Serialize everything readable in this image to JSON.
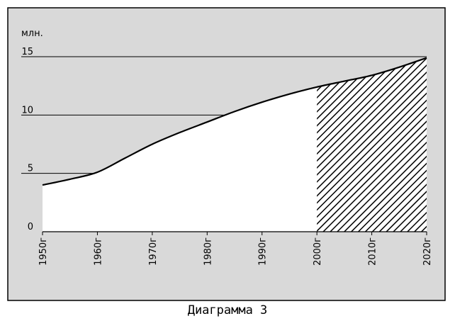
{
  "chart_data": {
    "type": "area",
    "caption": "Диаграмма 3",
    "ylabel": "млн.",
    "xlabel": "",
    "ylim": [
      0,
      15
    ],
    "yticks": [
      "0",
      "5",
      "10",
      "15"
    ],
    "x": [
      1950,
      1955,
      1960,
      1965,
      1970,
      1975,
      1980,
      1985,
      1990,
      1995,
      2000,
      2005,
      2010,
      2015,
      2020
    ],
    "xtick_labels": [
      "1950г",
      "1960г",
      "1970г",
      "1980г",
      "1990г",
      "2000г",
      "2010г",
      "2020г"
    ],
    "values": [
      4.0,
      4.5,
      5.1,
      6.3,
      7.5,
      8.5,
      9.4,
      10.3,
      11.1,
      11.8,
      12.4,
      12.9,
      13.4,
      14.1,
      14.9
    ],
    "forecast_from": 2000,
    "grid": true,
    "colors": {
      "plot_background": "#d9d9d9",
      "area_fill": "#ffffff",
      "line": "#000000"
    }
  }
}
